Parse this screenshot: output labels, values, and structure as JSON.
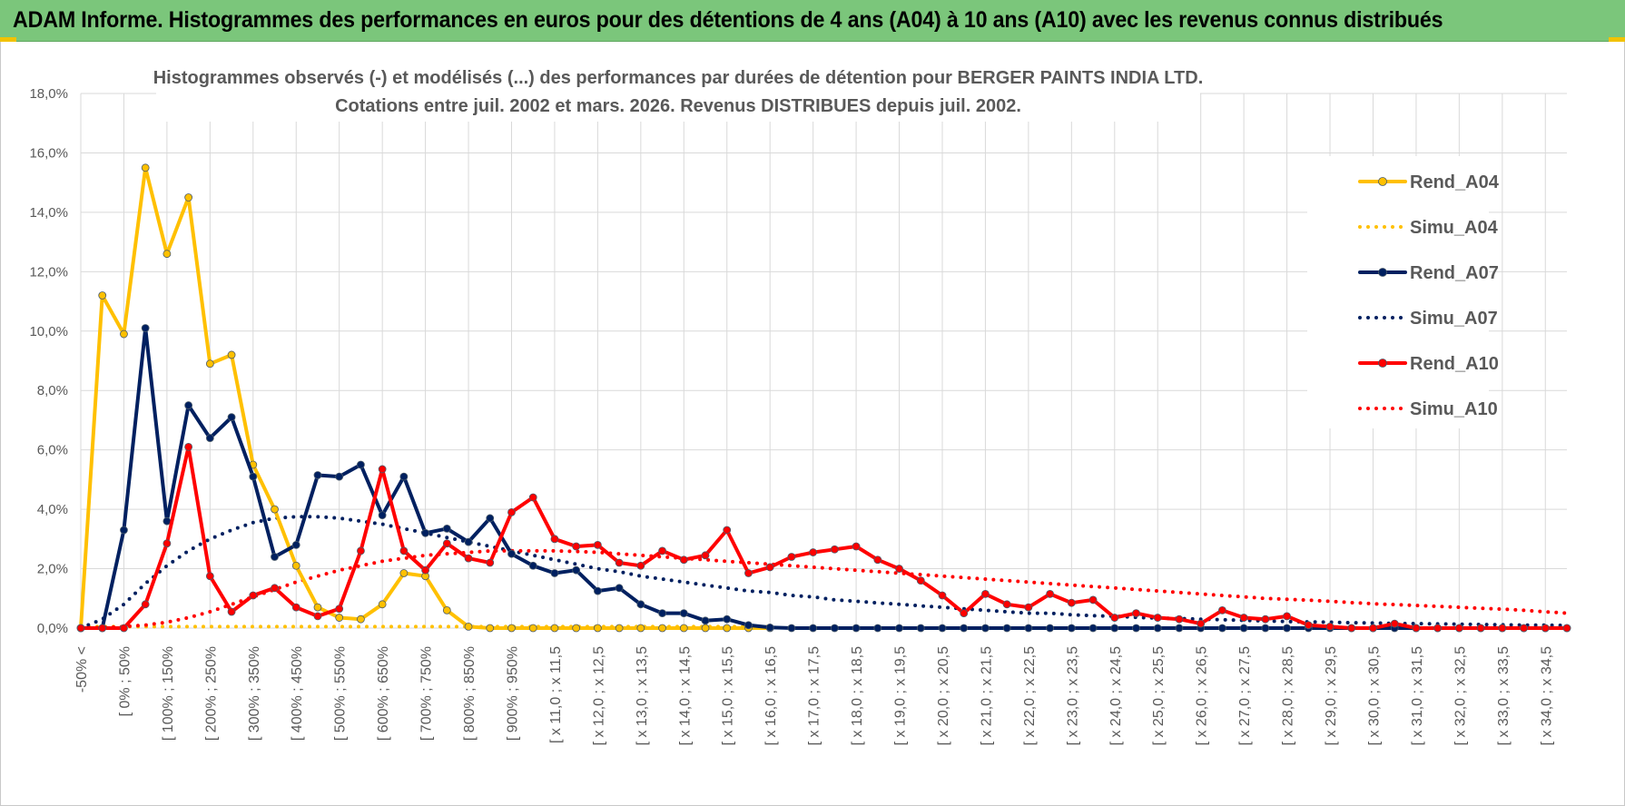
{
  "banner": {
    "title": "ADAM Informe. Histogrammes des performances en euros pour des détentions de 4 ans (A04) à 10 ans (A10) avec les revenus connus distribués"
  },
  "colors": {
    "banner": "#7bc67b",
    "A04": "#ffc000",
    "A07": "#002060",
    "A10": "#ff0000",
    "grid": "#d9d9d9",
    "text": "#595959"
  },
  "chart_data": {
    "type": "line",
    "title": "Histogrammes observés (-) et modélisés (...) des performances par durées de détention pour BERGER PAINTS INDIA LTD.",
    "subtitle": "Cotations entre juil. 2002 et mars. 2026. Revenus DISTRIBUES depuis juil. 2002.",
    "xlabel": "",
    "ylabel": "",
    "ylim": [
      0,
      18
    ],
    "y_ticks": [
      "0,0%",
      "2,0%",
      "4,0%",
      "6,0%",
      "8,0%",
      "10,0%",
      "12,0%",
      "14,0%",
      "16,0%",
      "18,0%"
    ],
    "grid": true,
    "legend_position": "right",
    "x_tick_labels": [
      "-50% <",
      "[ 0% ; 50%",
      "[ 100% ; 150%",
      "[ 200% ; 250%",
      "[ 300% ; 350%",
      "[ 400% ; 450%",
      "[ 500% ; 550%",
      "[ 600% ; 650%",
      "[ 700% ; 750%",
      "[ 800% ; 850%",
      "[ 900% ; 950%",
      "[ x 11,0 ; x 11,5",
      "[ x 12,0 ; x 12,5",
      "[ x 13,0 ; x 13,5",
      "[ x 14,0 ; x 14,5",
      "[ x 15,0 ; x 15,5",
      "[ x 16,0 ; x 16,5",
      "[ x 17,0 ; x 17,5",
      "[ x 18,0 ; x 18,5",
      "[ x 19,0 ; x 19,5",
      "[ x 20,0 ; x 20,5",
      "[ x 21,0 ; x 21,5",
      "[ x 22,0 ; x 22,5",
      "[ x 23,0 ; x 23,5",
      "[ x 24,0 ; x 24,5",
      "[ x 25,0 ; x 25,5",
      "[ x 26,0 ; x 26,5",
      "[ x 27,0 ; x 27,5",
      "[ x 28,0 ; x 28,5",
      "[ x 29,0 ; x 29,5",
      "[ x 30,0 ; x 30,5",
      "[ x 31,0 ; x 31,5",
      "[ x 32,0 ; x 32,5",
      "[ x 33,0 ; x 33,5",
      "[ x 34,0 ; x 34,5"
    ],
    "series": [
      {
        "name": "Rend_A04",
        "color": "#ffc000",
        "style": "solid",
        "marker": true,
        "values": [
          0.0,
          11.2,
          9.9,
          15.5,
          12.6,
          14.5,
          8.9,
          9.2,
          5.5,
          4.0,
          2.1,
          0.7,
          0.35,
          0.3,
          0.8,
          1.85,
          1.75,
          0.6,
          0.05,
          0.0,
          0.0,
          0.0,
          0.0,
          0.0,
          0.0,
          0.0,
          0.0,
          0.0,
          0.0,
          0.0,
          0.0,
          0.0,
          0.0
        ]
      },
      {
        "name": "Simu_A04",
        "color": "#ffc000",
        "style": "dotted",
        "marker": false,
        "values": [
          0.05,
          0.05,
          0.05,
          0.05,
          0.05,
          0.05,
          0.05,
          0.05,
          0.05,
          0.05,
          0.05,
          0.05,
          0.05,
          0.05,
          0.05,
          0.05,
          0.05,
          0.05,
          0.05,
          0.05,
          0.05,
          0.05,
          0.05,
          0.05,
          0.05,
          0.05,
          0.05,
          0.05,
          0.05,
          0.05,
          0.05,
          0.05,
          0.05
        ]
      },
      {
        "name": "Rend_A07",
        "color": "#002060",
        "style": "solid",
        "marker": true,
        "values": [
          0.0,
          0.0,
          3.3,
          10.1,
          3.6,
          7.5,
          6.4,
          7.1,
          5.1,
          2.4,
          2.8,
          5.15,
          5.1,
          5.5,
          3.8,
          5.1,
          3.2,
          3.35,
          2.9,
          3.7,
          2.5,
          2.1,
          1.85,
          1.95,
          1.25,
          1.35,
          0.8,
          0.5,
          0.5,
          0.25,
          0.3,
          0.1,
          0.02,
          0.0,
          0.0,
          0.0,
          0.0,
          0.0,
          0.0,
          0.0,
          0.0,
          0.0,
          0.0,
          0.0,
          0.0,
          0.0,
          0.0,
          0.0,
          0.0,
          0.0,
          0.0,
          0.0,
          0.0,
          0.0,
          0.0,
          0.0,
          0.0,
          0.0,
          0.0,
          0.0,
          0.0,
          0.0,
          0.0,
          0.0,
          0.0,
          0.0,
          0.0,
          0.0,
          0.0,
          0.0
        ]
      },
      {
        "name": "Simu_A07",
        "color": "#002060",
        "style": "dotted",
        "marker": false,
        "values": [
          0.0,
          0.3,
          0.8,
          1.5,
          2.1,
          2.6,
          3.0,
          3.3,
          3.55,
          3.7,
          3.75,
          3.75,
          3.7,
          3.6,
          3.5,
          3.35,
          3.2,
          3.05,
          2.9,
          2.75,
          2.6,
          2.45,
          2.3,
          2.15,
          2.0,
          1.9,
          1.75,
          1.65,
          1.55,
          1.45,
          1.35,
          1.25,
          1.2,
          1.1,
          1.05,
          0.95,
          0.9,
          0.85,
          0.8,
          0.75,
          0.7,
          0.65,
          0.6,
          0.55,
          0.5,
          0.5,
          0.45,
          0.42,
          0.4,
          0.36,
          0.34,
          0.32,
          0.3,
          0.28,
          0.26,
          0.24,
          0.22,
          0.21,
          0.2,
          0.18,
          0.17,
          0.16,
          0.15,
          0.14,
          0.13,
          0.12,
          0.11,
          0.1,
          0.1,
          0.09
        ]
      },
      {
        "name": "Rend_A10",
        "color": "#ff0000",
        "style": "solid",
        "marker": true,
        "values": [
          0.0,
          0.0,
          0.0,
          0.8,
          2.85,
          6.1,
          1.75,
          0.55,
          1.1,
          1.35,
          0.7,
          0.4,
          0.65,
          2.6,
          5.35,
          2.6,
          1.95,
          2.85,
          2.35,
          2.2,
          3.9,
          4.4,
          3.0,
          2.75,
          2.8,
          2.2,
          2.1,
          2.6,
          2.3,
          2.45,
          3.3,
          1.85,
          2.05,
          2.4,
          2.55,
          2.65,
          2.75,
          2.3,
          2.0,
          1.6,
          1.1,
          0.5,
          1.15,
          0.8,
          0.7,
          1.15,
          0.85,
          0.95,
          0.35,
          0.5,
          0.35,
          0.3,
          0.15,
          0.6,
          0.35,
          0.3,
          0.4,
          0.1,
          0.05,
          0.0,
          0.0,
          0.15,
          0.0,
          0.0,
          0.0,
          0.0,
          0.0,
          0.0,
          0.0,
          0.0
        ]
      },
      {
        "name": "Simu_A10",
        "color": "#ff0000",
        "style": "dotted",
        "marker": false,
        "values": [
          0.0,
          0.02,
          0.05,
          0.1,
          0.2,
          0.35,
          0.55,
          0.8,
          1.05,
          1.3,
          1.55,
          1.75,
          1.95,
          2.1,
          2.25,
          2.35,
          2.45,
          2.5,
          2.55,
          2.6,
          2.6,
          2.6,
          2.6,
          2.58,
          2.55,
          2.5,
          2.45,
          2.4,
          2.35,
          2.3,
          2.25,
          2.2,
          2.15,
          2.1,
          2.05,
          2.0,
          1.95,
          1.9,
          1.85,
          1.8,
          1.75,
          1.7,
          1.65,
          1.6,
          1.55,
          1.5,
          1.45,
          1.4,
          1.35,
          1.3,
          1.25,
          1.2,
          1.15,
          1.1,
          1.05,
          1.0,
          0.97,
          0.94,
          0.9,
          0.86,
          0.82,
          0.79,
          0.76,
          0.73,
          0.7,
          0.67,
          0.64,
          0.6,
          0.55,
          0.5
        ]
      }
    ]
  }
}
